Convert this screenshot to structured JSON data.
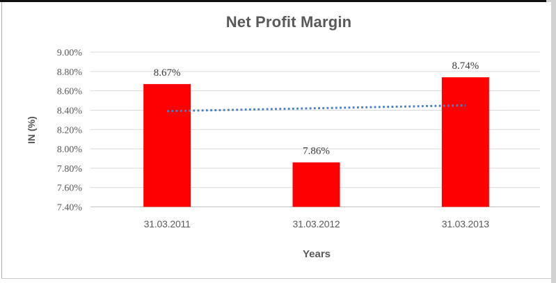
{
  "window": {
    "frame_top_color": "#101010",
    "frame_side_color": "#d2d2d2",
    "border_color": "#c6c6c6"
  },
  "chart_data": {
    "type": "bar",
    "title": "Net Profit Margin",
    "categories": [
      "31.03.2011",
      "31.03.2012",
      "31.03.2013"
    ],
    "values": [
      8.67,
      7.86,
      8.74
    ],
    "data_labels": [
      "8.67%",
      "7.86%",
      "8.74%"
    ],
    "xlabel": "Years",
    "ylabel": "IN (%)",
    "ylim": [
      7.4,
      9.0
    ],
    "ytick_step": 0.2,
    "ytick_labels": [
      "9.00%",
      "8.80%",
      "8.60%",
      "8.40%",
      "8.20%",
      "8.00%",
      "7.80%",
      "7.60%",
      "7.40%"
    ],
    "grid": true,
    "legend": "none",
    "bar_color": "#ff0000",
    "gridline_color": "#d9d9d9",
    "axis_line_color": "#c0c0c0",
    "text_color": "#595959",
    "data_label_color": "#3b3b3b",
    "trendline": {
      "type": "linear",
      "style": "dotted",
      "color": "#4a80c4",
      "start_value": 8.39,
      "end_value": 8.45
    }
  }
}
